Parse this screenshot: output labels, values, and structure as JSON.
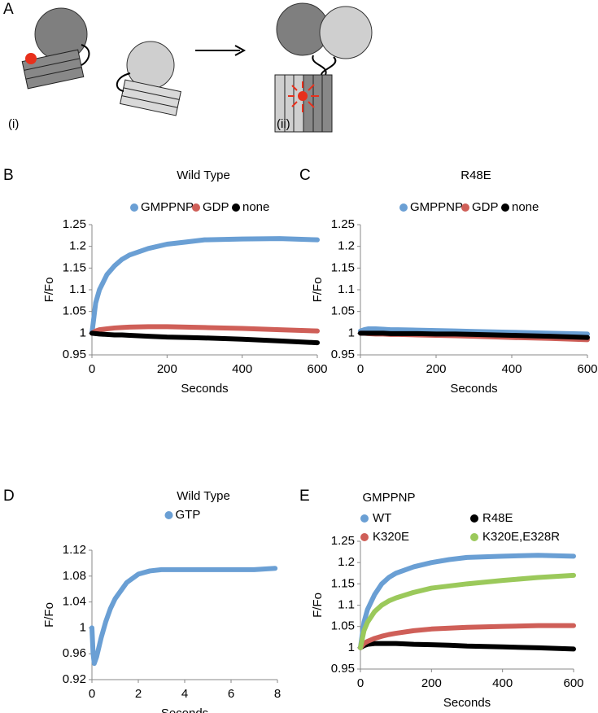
{
  "figure": {
    "labels": [
      "A",
      "B",
      "C",
      "D",
      "E"
    ],
    "stages": [
      "(i)",
      "(ii)"
    ]
  },
  "chart_data": [
    {
      "type": "line",
      "title": "Wild Type",
      "xlabel": "Seconds",
      "ylabel": "F/Fo",
      "x": [
        0,
        10,
        20,
        40,
        60,
        80,
        100,
        150,
        200,
        250,
        300,
        400,
        500,
        600
      ],
      "xlim": [
        0,
        600
      ],
      "xticks": [
        0,
        200,
        400,
        600
      ],
      "ylim": [
        0.95,
        1.25
      ],
      "yticks": [
        0.95,
        1,
        1.05,
        1.1,
        1.15,
        1.2,
        1.25
      ],
      "legend": "top",
      "series": [
        {
          "name": "GMPPNP",
          "color": "#6a9fd4",
          "values": [
            1.0,
            1.07,
            1.1,
            1.135,
            1.155,
            1.17,
            1.18,
            1.195,
            1.205,
            1.21,
            1.215,
            1.217,
            1.218,
            1.215
          ]
        },
        {
          "name": "GDP",
          "color": "#cf5f58",
          "values": [
            1.0,
            1.005,
            1.008,
            1.01,
            1.012,
            1.013,
            1.014,
            1.015,
            1.015,
            1.014,
            1.013,
            1.011,
            1.008,
            1.005
          ]
        },
        {
          "name": "none",
          "color": "#000000",
          "values": [
            1.0,
            0.999,
            0.998,
            0.997,
            0.996,
            0.996,
            0.995,
            0.993,
            0.991,
            0.99,
            0.989,
            0.986,
            0.982,
            0.978
          ]
        }
      ]
    },
    {
      "type": "line",
      "title": "R48E",
      "xlabel": "Seconds",
      "ylabel": "F/Fo",
      "x": [
        0,
        10,
        20,
        40,
        60,
        80,
        100,
        150,
        200,
        250,
        300,
        400,
        500,
        600
      ],
      "xlim": [
        0,
        600
      ],
      "xticks": [
        0,
        200,
        400,
        600
      ],
      "ylim": [
        0.95,
        1.25
      ],
      "yticks": [
        0.95,
        1,
        1.05,
        1.1,
        1.15,
        1.2,
        1.25
      ],
      "legend": "top",
      "series": [
        {
          "name": "GMPPNP",
          "color": "#6a9fd4",
          "values": [
            1.005,
            1.008,
            1.01,
            1.01,
            1.009,
            1.008,
            1.008,
            1.007,
            1.006,
            1.005,
            1.004,
            1.002,
            1.0,
            0.998
          ]
        },
        {
          "name": "GDP",
          "color": "#cf5f58",
          "values": [
            1.0,
            1.0,
            0.999,
            0.998,
            0.998,
            0.997,
            0.997,
            0.996,
            0.995,
            0.994,
            0.993,
            0.99,
            0.988,
            0.985
          ]
        },
        {
          "name": "none",
          "color": "#000000",
          "values": [
            1.0,
            1.0,
            1.0,
            1.0,
            1.0,
            0.999,
            0.999,
            0.999,
            0.998,
            0.998,
            0.997,
            0.995,
            0.993,
            0.99
          ]
        }
      ]
    },
    {
      "type": "line",
      "title": "Wild Type",
      "xlabel": "Seconds",
      "ylabel": "F/Fo",
      "x": [
        0,
        0.05,
        0.1,
        0.2,
        0.4,
        0.6,
        0.8,
        1,
        1.5,
        2,
        2.5,
        3,
        4,
        5,
        6,
        7,
        7.9
      ],
      "xlim": [
        0,
        8
      ],
      "xticks": [
        0,
        2,
        4,
        6,
        8
      ],
      "ylim": [
        0.92,
        1.12
      ],
      "yticks": [
        0.92,
        0.96,
        1,
        1.04,
        1.08,
        1.12
      ],
      "legend": "top",
      "series": [
        {
          "name": "GTP",
          "color": "#6a9fd4",
          "values": [
            1.0,
            0.96,
            0.945,
            0.955,
            0.985,
            1.01,
            1.03,
            1.045,
            1.07,
            1.083,
            1.088,
            1.09,
            1.09,
            1.09,
            1.09,
            1.09,
            1.092
          ]
        }
      ]
    },
    {
      "type": "line",
      "title": "GMPPNP",
      "xlabel": "Seconds",
      "ylabel": "F/Fo",
      "x": [
        0,
        10,
        20,
        40,
        60,
        80,
        100,
        150,
        200,
        250,
        300,
        400,
        500,
        600
      ],
      "xlim": [
        0,
        600
      ],
      "xticks": [
        0,
        200,
        400,
        600
      ],
      "ylim": [
        0.95,
        1.25
      ],
      "yticks": [
        0.95,
        1,
        1.05,
        1.1,
        1.15,
        1.2,
        1.25
      ],
      "legend": "top",
      "series": [
        {
          "name": "WT",
          "color": "#6a9fd4",
          "values": [
            1.0,
            1.06,
            1.09,
            1.125,
            1.15,
            1.165,
            1.175,
            1.19,
            1.2,
            1.207,
            1.212,
            1.215,
            1.217,
            1.215
          ]
        },
        {
          "name": "R48E",
          "color": "#000000",
          "values": [
            1.0,
            1.005,
            1.008,
            1.01,
            1.01,
            1.01,
            1.01,
            1.008,
            1.007,
            1.006,
            1.004,
            1.002,
            1.0,
            0.997
          ]
        },
        {
          "name": "K320E",
          "color": "#cf5f58",
          "values": [
            1.0,
            1.01,
            1.015,
            1.022,
            1.027,
            1.031,
            1.034,
            1.04,
            1.044,
            1.046,
            1.048,
            1.05,
            1.052,
            1.052
          ]
        },
        {
          "name": "K320E,E328R",
          "color": "#9bc95b",
          "values": [
            1.0,
            1.04,
            1.06,
            1.085,
            1.1,
            1.11,
            1.117,
            1.13,
            1.14,
            1.145,
            1.15,
            1.158,
            1.165,
            1.17
          ]
        }
      ]
    }
  ]
}
